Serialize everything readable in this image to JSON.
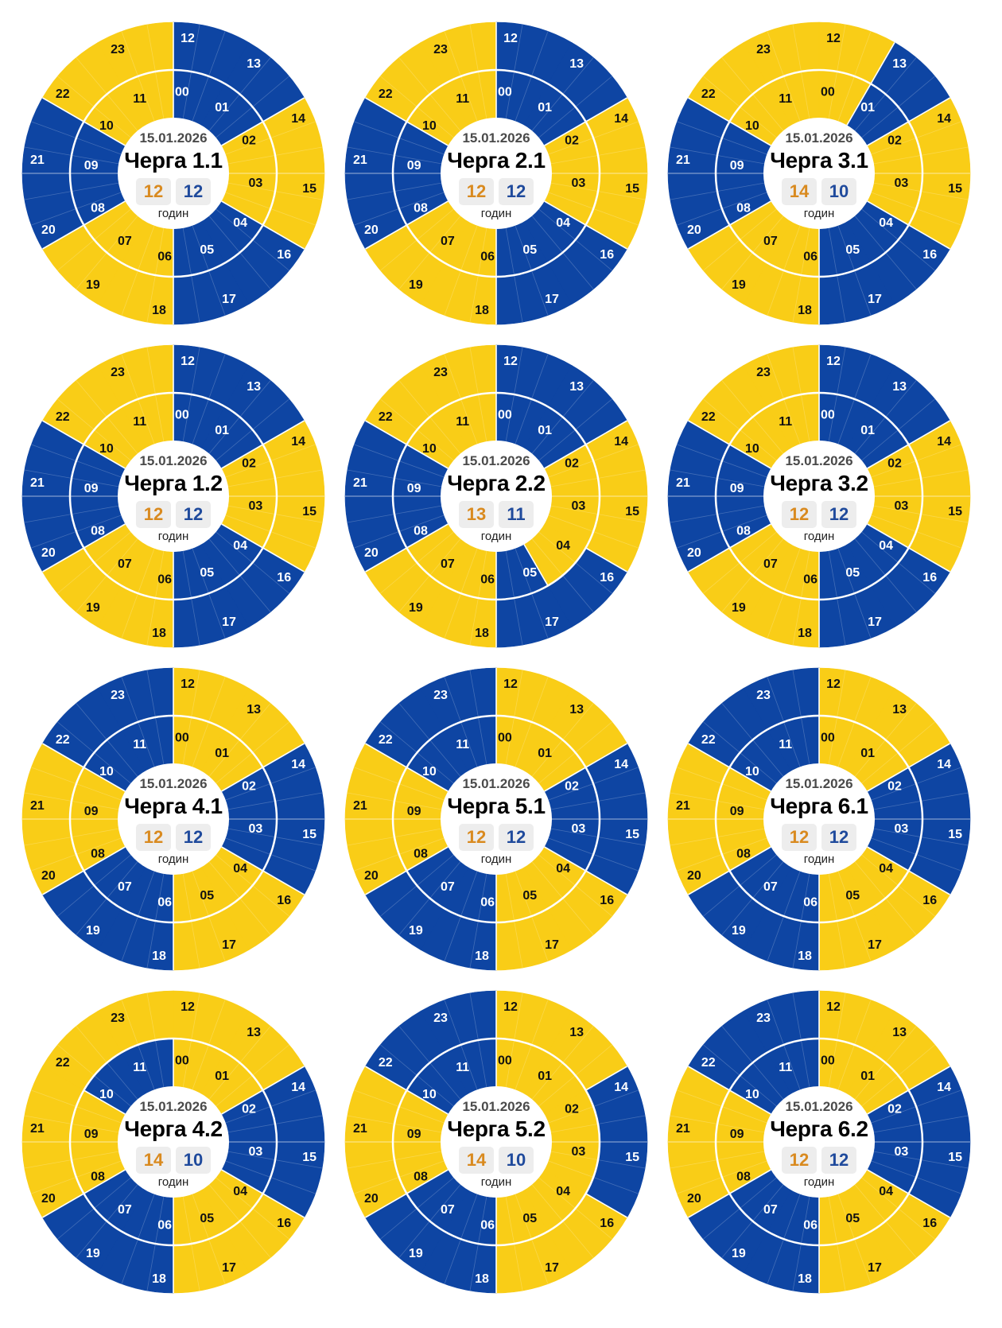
{
  "chart_data": {
    "type": "radial-schedule",
    "date": "15.01.2026",
    "hours_unit": "годин",
    "colors": {
      "on": "#f9cd17",
      "off": "#0e45a3"
    },
    "hour_labels": [
      "00",
      "01",
      "02",
      "03",
      "04",
      "05",
      "06",
      "07",
      "08",
      "09",
      "10",
      "11",
      "12",
      "13",
      "14",
      "15",
      "16",
      "17",
      "18",
      "19",
      "20",
      "21",
      "22",
      "23"
    ],
    "charts": [
      {
        "queue": "Черга 1.1",
        "on_hours": "12",
        "off_hours": "12",
        "schedule": [
          "off",
          "off",
          "on",
          "on",
          "off",
          "off",
          "on",
          "on",
          "off",
          "off",
          "on",
          "on",
          "off",
          "off",
          "on",
          "on",
          "off",
          "off",
          "on",
          "on",
          "off",
          "off",
          "on",
          "on"
        ]
      },
      {
        "queue": "Черга 2.1",
        "on_hours": "12",
        "off_hours": "12",
        "schedule": [
          "off",
          "off",
          "on",
          "on",
          "off",
          "off",
          "on",
          "on",
          "off",
          "off",
          "on",
          "on",
          "off",
          "off",
          "on",
          "on",
          "off",
          "off",
          "on",
          "on",
          "off",
          "off",
          "on",
          "on"
        ]
      },
      {
        "queue": "Черга 3.1",
        "on_hours": "14",
        "off_hours": "10",
        "schedule": [
          "on",
          "off",
          "on",
          "on",
          "off",
          "off",
          "on",
          "on",
          "off",
          "off",
          "on",
          "on",
          "on",
          "off",
          "on",
          "on",
          "off",
          "off",
          "on",
          "on",
          "off",
          "off",
          "on",
          "on"
        ]
      },
      {
        "queue": "Черга 1.2",
        "on_hours": "12",
        "off_hours": "12",
        "schedule": [
          "off",
          "off",
          "on",
          "on",
          "off",
          "off",
          "on",
          "on",
          "off",
          "off",
          "on",
          "on",
          "off",
          "off",
          "on",
          "on",
          "off",
          "off",
          "on",
          "on",
          "off",
          "off",
          "on",
          "on"
        ]
      },
      {
        "queue": "Черга 2.2",
        "on_hours": "13",
        "off_hours": "11",
        "schedule": [
          "off",
          "off",
          "on",
          "on",
          "on",
          "off",
          "on",
          "on",
          "off",
          "off",
          "on",
          "on",
          "off",
          "off",
          "on",
          "on",
          "off",
          "off",
          "on",
          "on",
          "off",
          "off",
          "on",
          "on"
        ]
      },
      {
        "queue": "Черга 3.2",
        "on_hours": "12",
        "off_hours": "12",
        "schedule": [
          "off",
          "off",
          "on",
          "on",
          "off",
          "off",
          "on",
          "on",
          "off",
          "off",
          "on",
          "on",
          "off",
          "off",
          "on",
          "on",
          "off",
          "off",
          "on",
          "on",
          "off",
          "off",
          "on",
          "on"
        ]
      },
      {
        "queue": "Черга 4.1",
        "on_hours": "12",
        "off_hours": "12",
        "schedule": [
          "on",
          "on",
          "off",
          "off",
          "on",
          "on",
          "off",
          "off",
          "on",
          "on",
          "off",
          "off",
          "on",
          "on",
          "off",
          "off",
          "on",
          "on",
          "off",
          "off",
          "on",
          "on",
          "off",
          "off"
        ]
      },
      {
        "queue": "Черга 5.1",
        "on_hours": "12",
        "off_hours": "12",
        "schedule": [
          "on",
          "on",
          "off",
          "off",
          "on",
          "on",
          "off",
          "off",
          "on",
          "on",
          "off",
          "off",
          "on",
          "on",
          "off",
          "off",
          "on",
          "on",
          "off",
          "off",
          "on",
          "on",
          "off",
          "off"
        ]
      },
      {
        "queue": "Черга 6.1",
        "on_hours": "12",
        "off_hours": "12",
        "schedule": [
          "on",
          "on",
          "off",
          "off",
          "on",
          "on",
          "off",
          "off",
          "on",
          "on",
          "off",
          "off",
          "on",
          "on",
          "off",
          "off",
          "on",
          "on",
          "off",
          "off",
          "on",
          "on",
          "off",
          "off"
        ]
      },
      {
        "queue": "Черга 4.2",
        "on_hours": "14",
        "off_hours": "10",
        "schedule": [
          "on",
          "on",
          "off",
          "off",
          "on",
          "on",
          "off",
          "off",
          "on",
          "on",
          "off",
          "off",
          "on",
          "on",
          "off",
          "off",
          "on",
          "on",
          "off",
          "off",
          "on",
          "on",
          "on",
          "on"
        ]
      },
      {
        "queue": "Черга 5.2",
        "on_hours": "14",
        "off_hours": "10",
        "schedule": [
          "on",
          "on",
          "on",
          "on",
          "on",
          "on",
          "off",
          "off",
          "on",
          "on",
          "off",
          "off",
          "on",
          "on",
          "off",
          "off",
          "on",
          "on",
          "off",
          "off",
          "on",
          "on",
          "off",
          "off"
        ]
      },
      {
        "queue": "Черга 6.2",
        "on_hours": "12",
        "off_hours": "12",
        "schedule": [
          "on",
          "on",
          "off",
          "off",
          "on",
          "on",
          "off",
          "off",
          "on",
          "on",
          "off",
          "off",
          "on",
          "on",
          "off",
          "off",
          "on",
          "on",
          "off",
          "off",
          "on",
          "on",
          "off",
          "off"
        ]
      }
    ]
  }
}
